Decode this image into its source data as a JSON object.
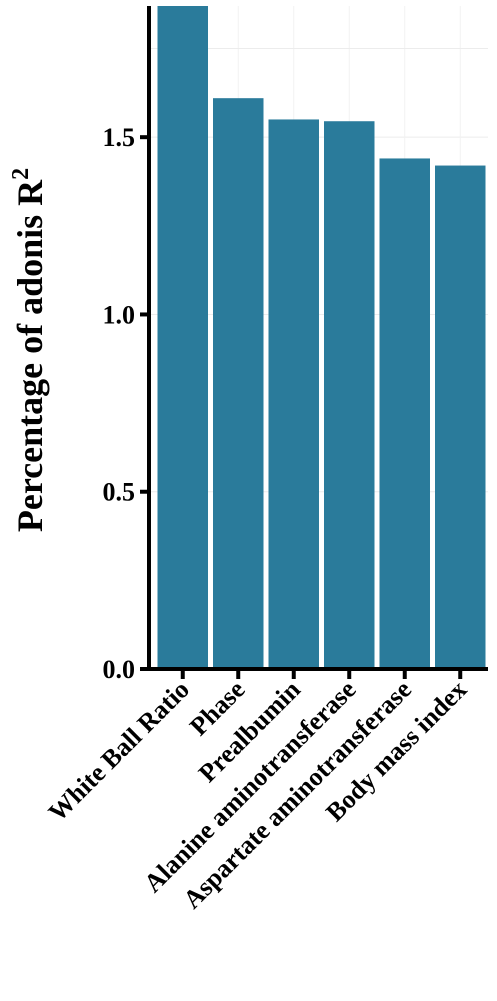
{
  "chart_data": {
    "type": "bar",
    "categories": [
      "White Ball Ratio",
      "Phase",
      "Prealbumin",
      "Alanine aminotransferase",
      "Aspartate aminotransferase",
      "Body mass index"
    ],
    "values": [
      1.87,
      1.61,
      1.55,
      1.545,
      1.44,
      1.42
    ],
    "ylabel": "Percentage of adonis R",
    "ylabel_superscript": "2",
    "ylim": [
      0,
      1.87
    ],
    "yticks": [
      0.0,
      0.5,
      1.0,
      1.5
    ],
    "ytick_labels": [
      "0.0",
      "0.5",
      "1.0",
      "1.5"
    ],
    "grid": true,
    "bar_color": "#2a7b9b"
  }
}
